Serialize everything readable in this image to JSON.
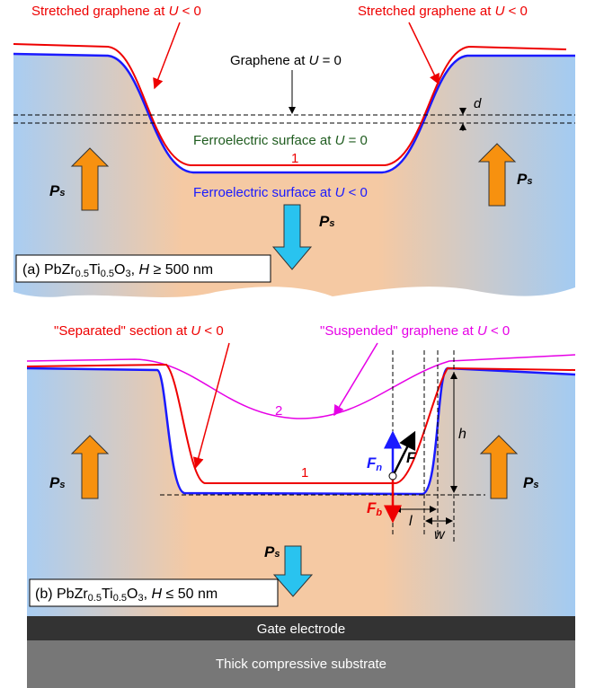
{
  "panel_a": {
    "stretched_left": [
      "Stretched graphene at ",
      "U",
      " < 0"
    ],
    "stretched_right": [
      "Stretched graphene at ",
      "U",
      " < 0"
    ],
    "graphene_u0": [
      "Graphene at ",
      "U",
      " = 0"
    ],
    "d": "d",
    "ferro_u0": [
      "Ferroelectric surface at ",
      "U",
      " = 0"
    ],
    "curve_1": "1",
    "ferro_u_neg": [
      "Ferroelectric surface at ",
      "U",
      " < 0"
    ],
    "ps_left": [
      "P",
      "s"
    ],
    "ps_right": [
      "P",
      "s"
    ],
    "ps_center": [
      "P",
      "s"
    ],
    "caption": [
      "(a) PbZr",
      "0.5",
      "Ti",
      "0.5",
      "O",
      "3",
      ", ",
      "H",
      " ≥ 500 nm"
    ]
  },
  "panel_b": {
    "separated": [
      "\"Separated\" section at ",
      "U",
      " < 0"
    ],
    "suspended": [
      "\"Suspended\" graphene at ",
      "U",
      " < 0"
    ],
    "curve_2": "2",
    "curve_1": "1",
    "fn": [
      "F",
      "n"
    ],
    "f": "F",
    "fb": [
      "F",
      "b"
    ],
    "h": "h",
    "l": "l",
    "w": "w",
    "ps_left": [
      "P",
      "s"
    ],
    "ps_right": [
      "P",
      "s"
    ],
    "ps_bottom": [
      "P",
      "s"
    ],
    "caption": [
      "(b) PbZr",
      "0.5",
      "Ti",
      "0.5",
      "O",
      "3",
      ", ",
      "H",
      " ≤ 50 nm"
    ]
  },
  "gate": "Gate electrode",
  "substrate": "Thick compressive substrate"
}
